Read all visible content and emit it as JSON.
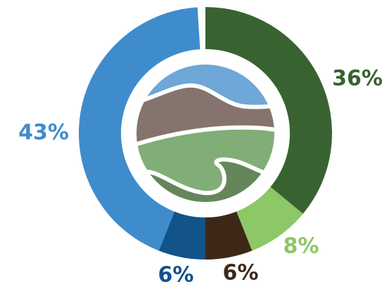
{
  "chart_data": {
    "type": "donut",
    "values": [
      36,
      8,
      6,
      6,
      43
    ],
    "value_labels": [
      "36%",
      "8%",
      "6%",
      "6%",
      "43%"
    ],
    "colors": [
      "#386330",
      "#8cc865",
      "#3d2817",
      "#12538a",
      "#3f8ccd"
    ]
  }
}
